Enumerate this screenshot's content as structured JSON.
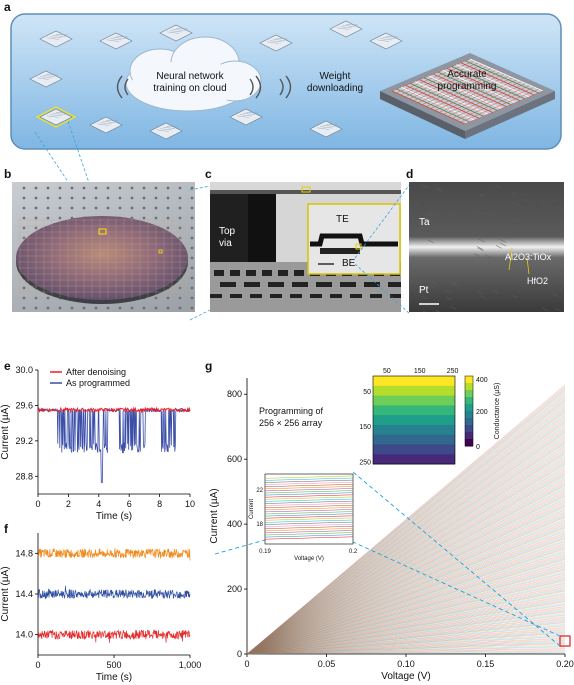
{
  "panels": {
    "a": {
      "letter": "a",
      "cloud_text": [
        "Neural network",
        "training on cloud"
      ],
      "download_text": [
        "Weight",
        "downloading"
      ],
      "chip_text": [
        "Accurate",
        "programming"
      ]
    },
    "b": {
      "letter": "b"
    },
    "c": {
      "letter": "c",
      "top_via": [
        "Top",
        "via"
      ],
      "te": "TE",
      "be": "BE"
    },
    "d": {
      "letter": "d",
      "ta": "Ta",
      "pt": "Pt",
      "al2o3": "Al2O3:TiOx",
      "hfo2": "HfO2"
    },
    "e": {
      "letter": "e"
    },
    "f": {
      "letter": "f"
    },
    "g": {
      "letter": "g",
      "inset_title": [
        "Programming of",
        "256 × 256 array"
      ],
      "colorbar_label": "Conductance (µS)"
    }
  },
  "chart_data": [
    {
      "id": "e",
      "type": "line",
      "xlabel": "Time (s)",
      "ylabel": "Current (µA)",
      "xlim": [
        0,
        10
      ],
      "ylim": [
        28.6,
        30.0
      ],
      "xticks": [
        "0",
        "2",
        "4",
        "6",
        "8",
        "10"
      ],
      "yticks": [
        "28.8",
        "29.2",
        "29.6",
        "30.0"
      ],
      "legend": [
        "After denoising",
        "As programmed"
      ],
      "colors": {
        "denoised": "#e8202a",
        "programmed": "#3b4ea8"
      },
      "series": [
        {
          "name": "After denoising",
          "mean": 29.55,
          "noise": 0.02
        },
        {
          "name": "As programmed",
          "high": 29.56,
          "low": 29.06,
          "min_spike": 28.73
        }
      ]
    },
    {
      "id": "f",
      "type": "line",
      "xlabel": "Time (s)",
      "ylabel": "Current (µA)",
      "xlim": [
        0,
        1000
      ],
      "ylim": [
        13.8,
        15.0
      ],
      "xticks": [
        "0",
        "500",
        "1,000"
      ],
      "yticks": [
        "14.0",
        "14.4",
        "14.8"
      ],
      "series": [
        {
          "color": "#f18a1d",
          "mean": 14.8,
          "noise": 0.02
        },
        {
          "color": "#2f4fa3",
          "mean": 14.4,
          "noise": 0.02
        },
        {
          "color": "#e32a2a",
          "mean": 14.0,
          "noise": 0.02
        }
      ]
    },
    {
      "id": "g",
      "type": "line",
      "xlabel": "Voltage (V)",
      "ylabel": "Current (µA)",
      "xlim": [
        0,
        0.2
      ],
      "ylim": [
        0,
        850
      ],
      "xticks": [
        "0",
        "0.05",
        "0.10",
        "0.15",
        "0.20"
      ],
      "yticks": [
        "0",
        "200",
        "400",
        "600",
        "800"
      ],
      "series_count": 256,
      "i_max_at_0_2V": 830,
      "inset_zoom": {
        "xticks": [
          "0.19",
          "0.2"
        ],
        "yticks": [
          "18",
          "22"
        ],
        "xlabel": "Voltage (V)",
        "ylabel": "Current"
      },
      "heatmap": {
        "xticks": [
          "50",
          "150",
          "250"
        ],
        "yticks": [
          "50",
          "150",
          "250"
        ],
        "colorbar_ticks": [
          "0",
          "200",
          "400"
        ]
      }
    }
  ]
}
